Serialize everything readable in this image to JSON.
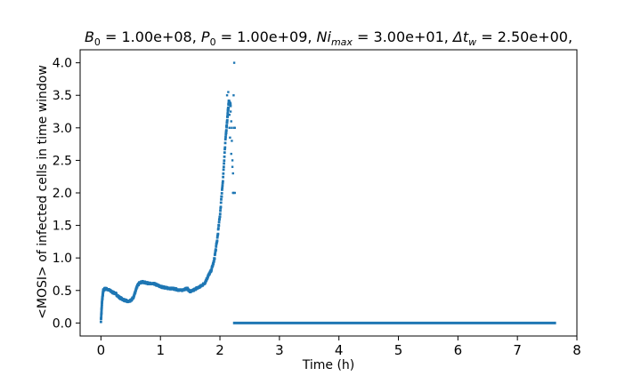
{
  "chart_data": {
    "type": "scatter",
    "title": "B₀ = 1.00e+08, P₀ = 1.00e+09, Niₘₐₓ = 3.00e+01, Δtᵥ = 2.50e+00,",
    "title_parts": {
      "b0": "B",
      "b0_sub": "0",
      "b0_val": " = 1.00e+08, ",
      "p0": "P",
      "p0_sub": "0",
      "p0_val": " = 1.00e+09, ",
      "ni": "Ni",
      "ni_sub": "max",
      "ni_val": " = 3.00e+01, ",
      "dt": "Δt",
      "dt_sub": "w",
      "dt_val": " = 2.50e+00,"
    },
    "xlabel": "Time (h)",
    "ylabel": "<MOSI> of infected cells in time window",
    "xlim": [
      -0.35,
      8.0
    ],
    "ylim": [
      -0.2,
      4.2
    ],
    "x_ticks": [
      0,
      1,
      2,
      3,
      4,
      5,
      6,
      7,
      8
    ],
    "y_ticks": [
      0.0,
      0.5,
      1.0,
      1.5,
      2.0,
      2.5,
      3.0,
      3.5,
      4.0
    ],
    "x_tick_labels": [
      "0",
      "1",
      "2",
      "3",
      "4",
      "5",
      "6",
      "7",
      "8"
    ],
    "y_tick_labels": [
      "0.0",
      "0.5",
      "1.0",
      "1.5",
      "2.0",
      "2.5",
      "3.0",
      "3.5",
      "4.0"
    ],
    "grid": false,
    "marker_color": "#1f77b4",
    "series": [
      {
        "trend": [
          [
            0.0,
            0.03
          ],
          [
            0.02,
            0.35
          ],
          [
            0.04,
            0.5
          ],
          [
            0.07,
            0.53
          ],
          [
            0.1,
            0.52
          ],
          [
            0.15,
            0.5
          ],
          [
            0.2,
            0.47
          ],
          [
            0.25,
            0.45
          ],
          [
            0.3,
            0.4
          ],
          [
            0.35,
            0.37
          ],
          [
            0.4,
            0.35
          ],
          [
            0.45,
            0.33
          ],
          [
            0.5,
            0.34
          ],
          [
            0.55,
            0.4
          ],
          [
            0.6,
            0.55
          ],
          [
            0.65,
            0.62
          ],
          [
            0.7,
            0.63
          ],
          [
            0.75,
            0.62
          ],
          [
            0.8,
            0.61
          ],
          [
            0.85,
            0.6
          ],
          [
            0.9,
            0.6
          ],
          [
            0.95,
            0.58
          ],
          [
            1.0,
            0.56
          ],
          [
            1.05,
            0.55
          ],
          [
            1.1,
            0.54
          ],
          [
            1.15,
            0.53
          ],
          [
            1.2,
            0.53
          ],
          [
            1.25,
            0.52
          ],
          [
            1.3,
            0.51
          ],
          [
            1.35,
            0.5
          ],
          [
            1.4,
            0.52
          ],
          [
            1.45,
            0.53
          ],
          [
            1.5,
            0.48
          ],
          [
            1.55,
            0.5
          ],
          [
            1.6,
            0.53
          ],
          [
            1.65,
            0.55
          ],
          [
            1.7,
            0.58
          ],
          [
            1.75,
            0.62
          ],
          [
            1.8,
            0.72
          ],
          [
            1.85,
            0.8
          ],
          [
            1.9,
            0.95
          ],
          [
            1.95,
            1.25
          ],
          [
            2.0,
            1.65
          ],
          [
            2.05,
            2.2
          ],
          [
            2.1,
            2.9
          ],
          [
            2.13,
            3.2
          ],
          [
            2.15,
            3.4
          ],
          [
            2.18,
            3.35
          ]
        ],
        "scatter": [
          [
            2.12,
            3.5
          ],
          [
            2.14,
            3.55
          ],
          [
            2.16,
            3.2
          ],
          [
            2.16,
            3.0
          ],
          [
            2.17,
            2.85
          ],
          [
            2.18,
            3.25
          ],
          [
            2.19,
            2.6
          ],
          [
            2.2,
            2.8
          ],
          [
            2.2,
            3.0
          ],
          [
            2.21,
            2.5
          ],
          [
            2.22,
            2.3
          ],
          [
            2.22,
            2.0
          ],
          [
            2.23,
            3.5
          ],
          [
            2.23,
            2.0
          ],
          [
            2.24,
            4.0
          ],
          [
            2.24,
            3.0
          ],
          [
            2.25,
            2.0
          ],
          [
            2.25,
            3.0
          ],
          [
            2.19,
            3.1
          ],
          [
            2.21,
            2.4
          ]
        ],
        "flat": {
          "x_start": 2.22,
          "x_end": 7.65,
          "y": 0.0
        }
      }
    ]
  }
}
